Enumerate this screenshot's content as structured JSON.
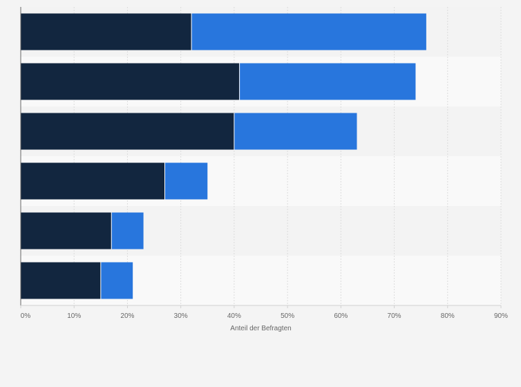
{
  "chart_data": {
    "type": "bar",
    "orientation": "horizontal",
    "stacked": true,
    "categories": [
      "",
      "",
      "",
      "",
      "",
      ""
    ],
    "series": [
      {
        "values": [
          32,
          41,
          40,
          27,
          17,
          15
        ],
        "color": "#12263f"
      },
      {
        "values": [
          44,
          33,
          23,
          8,
          6,
          6
        ],
        "color": "#2876dd"
      }
    ],
    "xlim": [
      0,
      90
    ],
    "x_ticks": [
      0,
      10,
      20,
      30,
      40,
      50,
      60,
      70,
      80,
      90
    ],
    "x_tick_labels": [
      "0%",
      "10%",
      "20%",
      "30%",
      "40%",
      "50%",
      "60%",
      "70%",
      "80%",
      "90%"
    ],
    "xlabel": "Anteil der Befragten",
    "ylabel": "",
    "title": "",
    "grid": true,
    "legend": "none",
    "colors": {
      "background": "#f4f4f4",
      "band_light": "#f9f9f9",
      "band_dark": "#f3f3f3",
      "gridline": "#dcdcdc",
      "axis": "#666666",
      "tick_text": "#666666"
    }
  }
}
